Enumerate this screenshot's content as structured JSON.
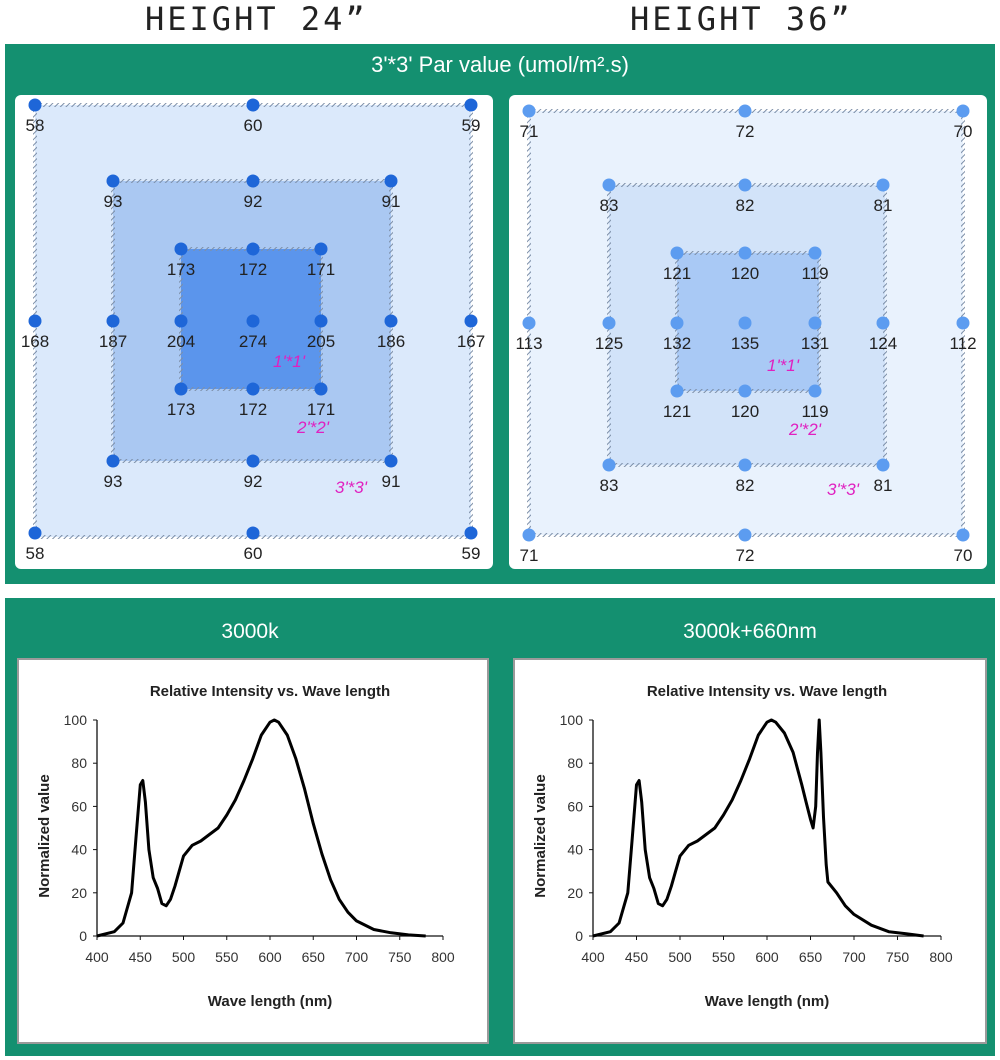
{
  "headings": {
    "left": "HEIGHT 24”",
    "right": "HEIGHT 36”"
  },
  "par_banner": "3'*3' Par value (umol/m².s)",
  "grid_labels": {
    "one": "1'*1'",
    "two": "2'*2'",
    "three": "3'*3'"
  },
  "colors": {
    "panel": "#149070",
    "accent_label": "#e020c0",
    "dot_24": "#1e66d8",
    "dot_36": "#5c9cf0"
  },
  "par_grids": [
    {
      "name": "HEIGHT 24”",
      "outer_3x3": [
        58,
        60,
        59,
        168,
        167,
        58,
        60,
        59
      ],
      "mid_2x2": [
        93,
        92,
        91,
        187,
        186,
        93,
        92,
        91
      ],
      "inner_1x1": [
        173,
        172,
        171,
        204,
        274,
        205,
        173,
        172,
        171
      ]
    },
    {
      "name": "HEIGHT 36”",
      "outer_3x3": [
        71,
        72,
        70,
        113,
        112,
        71,
        72,
        70
      ],
      "mid_2x2": [
        83,
        82,
        81,
        125,
        124,
        83,
        82,
        81
      ],
      "inner_1x1": [
        121,
        120,
        119,
        132,
        135,
        131,
        121,
        120,
        119
      ]
    }
  ],
  "spectrum_titles": [
    "3000k",
    "3000k+660nm"
  ],
  "chart_data": [
    {
      "type": "line",
      "title": "Relative Intensity vs. Wave length",
      "xlabel": "Wave length (nm)",
      "ylabel": "Normalized value",
      "xlim": [
        400,
        800
      ],
      "ylim": [
        0,
        100
      ],
      "xticks": [
        400,
        450,
        500,
        550,
        600,
        650,
        700,
        750,
        800
      ],
      "yticks": [
        0,
        20,
        40,
        60,
        80,
        100
      ],
      "grid": false,
      "series": [
        {
          "x": [
            400,
            420,
            430,
            440,
            445,
            450,
            453,
            456,
            460,
            465,
            470,
            475,
            480,
            485,
            490,
            495,
            500,
            510,
            520,
            530,
            540,
            550,
            560,
            570,
            580,
            590,
            600,
            605,
            610,
            620,
            630,
            640,
            650,
            660,
            670,
            680,
            690,
            700,
            720,
            740,
            760,
            780
          ],
          "y": [
            0,
            2,
            6,
            20,
            45,
            70,
            72,
            62,
            40,
            27,
            22,
            15,
            14,
            17,
            23,
            30,
            37,
            42,
            44,
            47,
            50,
            56,
            63,
            72,
            82,
            93,
            99,
            100,
            99,
            93,
            82,
            68,
            52,
            38,
            26,
            17,
            11,
            7,
            3,
            1.5,
            0.5,
            0
          ]
        }
      ]
    },
    {
      "type": "line",
      "title": "Relative Intensity vs. Wave length",
      "xlabel": "Wave length (nm)",
      "ylabel": "Normalized value",
      "xlim": [
        400,
        800
      ],
      "ylim": [
        0,
        100
      ],
      "xticks": [
        400,
        450,
        500,
        550,
        600,
        650,
        700,
        750,
        800
      ],
      "yticks": [
        0,
        20,
        40,
        60,
        80,
        100
      ],
      "grid": false,
      "series": [
        {
          "x": [
            400,
            420,
            430,
            440,
            445,
            450,
            453,
            456,
            460,
            465,
            470,
            475,
            480,
            485,
            490,
            495,
            500,
            510,
            520,
            530,
            540,
            550,
            560,
            570,
            580,
            590,
            600,
            605,
            610,
            620,
            630,
            640,
            645,
            650,
            653,
            656,
            658,
            660,
            662,
            665,
            668,
            670,
            680,
            690,
            700,
            720,
            740,
            760,
            780
          ],
          "y": [
            0,
            2,
            6,
            20,
            45,
            70,
            72,
            62,
            40,
            27,
            22,
            15,
            14,
            17,
            23,
            30,
            37,
            42,
            44,
            47,
            50,
            56,
            63,
            72,
            82,
            93,
            99,
            100,
            99,
            94,
            85,
            70,
            62,
            54,
            50,
            60,
            85,
            100,
            85,
            55,
            33,
            25,
            20,
            14,
            10,
            5,
            2,
            1,
            0
          ]
        }
      ]
    }
  ]
}
